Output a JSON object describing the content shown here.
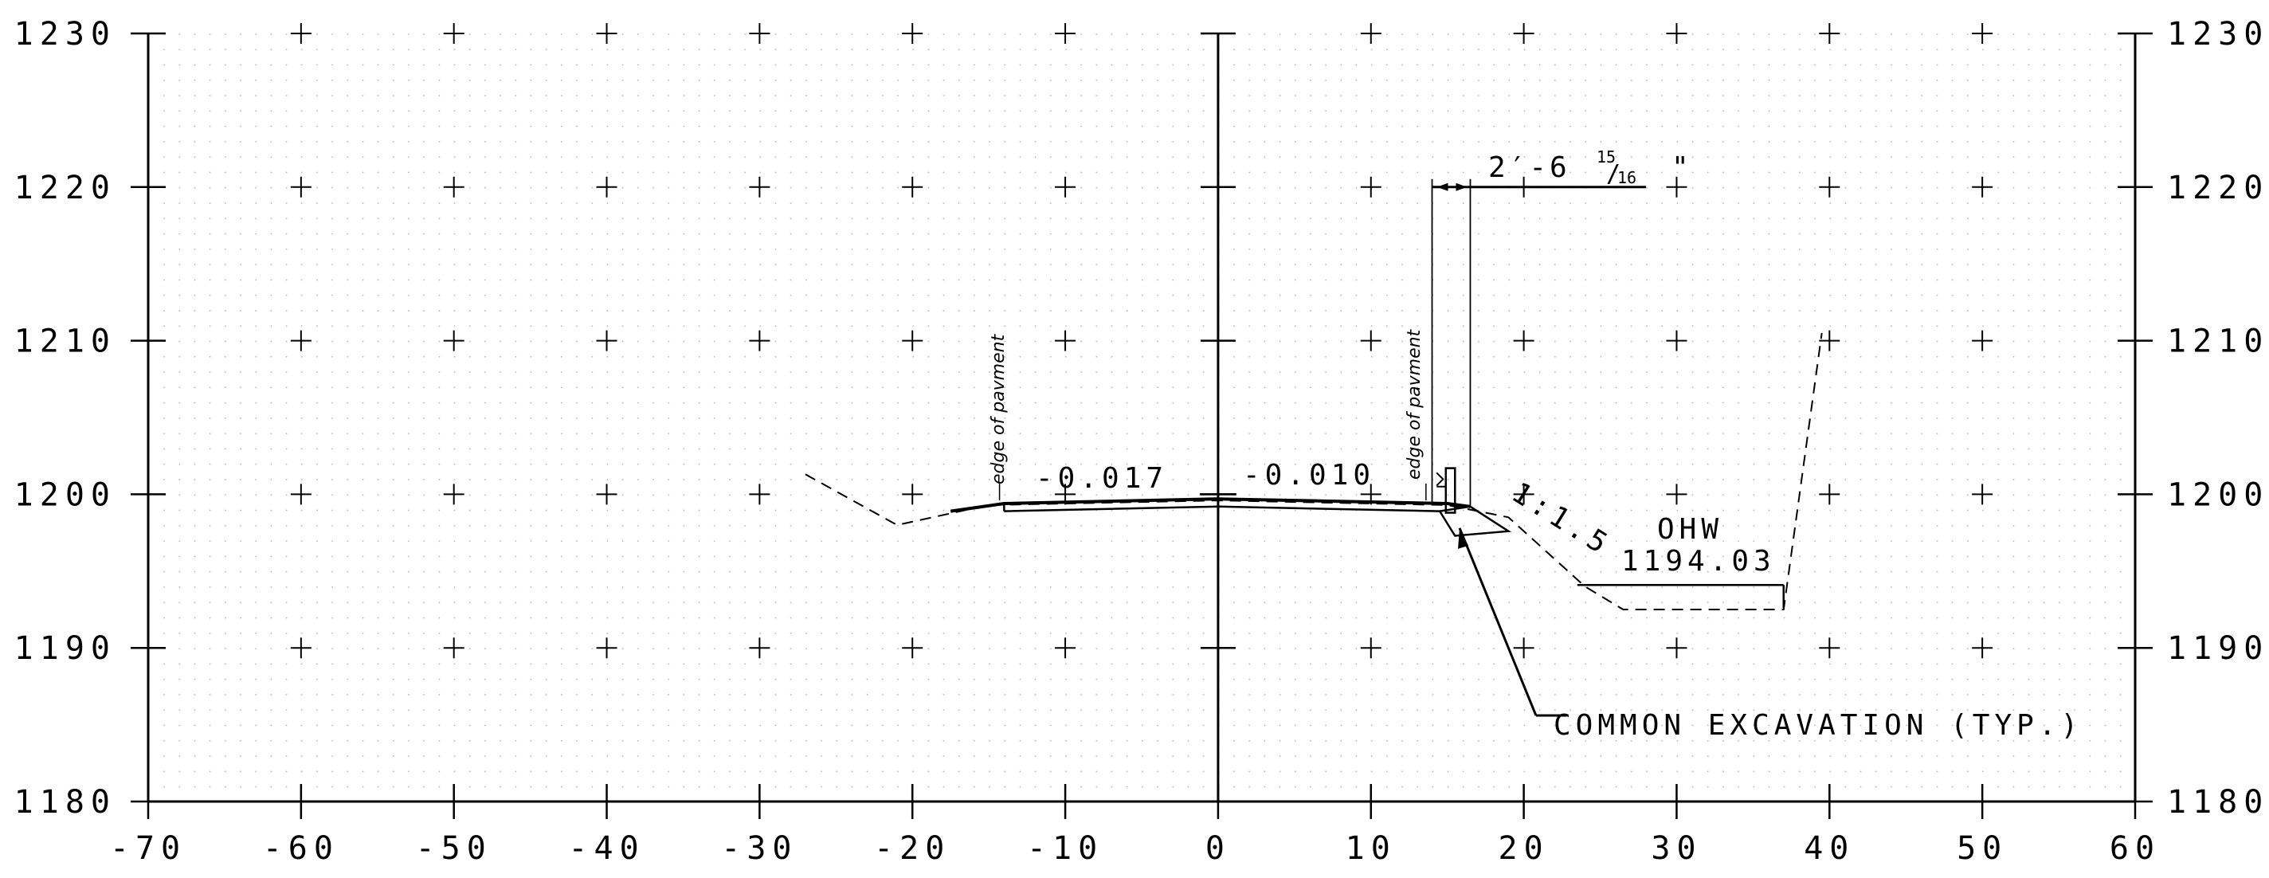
{
  "chart_data": {
    "type": "cross-section",
    "xlim": [
      -70,
      60
    ],
    "ylim": [
      1180,
      1230
    ],
    "x_ticks": [
      -70,
      -60,
      -50,
      -40,
      -30,
      -20,
      -10,
      0,
      10,
      20,
      30,
      40,
      50,
      60
    ],
    "x_tick_labels": [
      "-70",
      "-60",
      "-50",
      "-40",
      "-30",
      "-20",
      "-10",
      "0",
      "10",
      "20",
      "30",
      "40",
      "50",
      "60"
    ],
    "y_ticks": [
      1180,
      1190,
      1200,
      1210,
      1220,
      1230
    ],
    "y_tick_labels": [
      "1180",
      "1190",
      "1200",
      "1210",
      "1220",
      "1230"
    ],
    "grid": "dotted with cross markers",
    "existing_ground": [
      [
        -27,
        1201.3
      ],
      [
        -21,
        1198.0
      ],
      [
        -15,
        1199.3
      ],
      [
        0,
        1199.6
      ],
      [
        15,
        1199.3
      ],
      [
        19,
        1198.5
      ],
      [
        24,
        1194.0
      ],
      [
        26.5,
        1192.5
      ],
      [
        37,
        1192.5
      ],
      [
        39.5,
        1210.5
      ]
    ],
    "proposed_top": [
      [
        -17.5,
        1198.9
      ],
      [
        -14,
        1199.4
      ],
      [
        0,
        1199.7
      ],
      [
        15,
        1199.4
      ],
      [
        16.5,
        1199.2
      ]
    ],
    "proposed_bottom": [
      [
        -14,
        1198.9
      ],
      [
        0,
        1199.2
      ],
      [
        14.5,
        1198.9
      ]
    ],
    "slope_line": [
      [
        16.5,
        1199.2
      ],
      [
        19,
        1197.6
      ],
      [
        15.5,
        1197.3
      ],
      [
        14.5,
        1198.9
      ]
    ],
    "ohw_line": [
      [
        23.5,
        1194.1
      ],
      [
        37,
        1194.1
      ]
    ],
    "annotations": {
      "left_slope": "-0.017",
      "right_slope": "-0.010",
      "side_slope": "1:1.5",
      "edge_left": "edge of pavment",
      "edge_right": "edge of pavment",
      "ohw_label": "OHW",
      "ohw_elev": "1194.03",
      "excavation": "COMMON EXCAVATION (TYP.)",
      "dim_main": "2′-6",
      "dim_num": "15",
      "dim_den": "16",
      "dim_inch": "\""
    }
  }
}
